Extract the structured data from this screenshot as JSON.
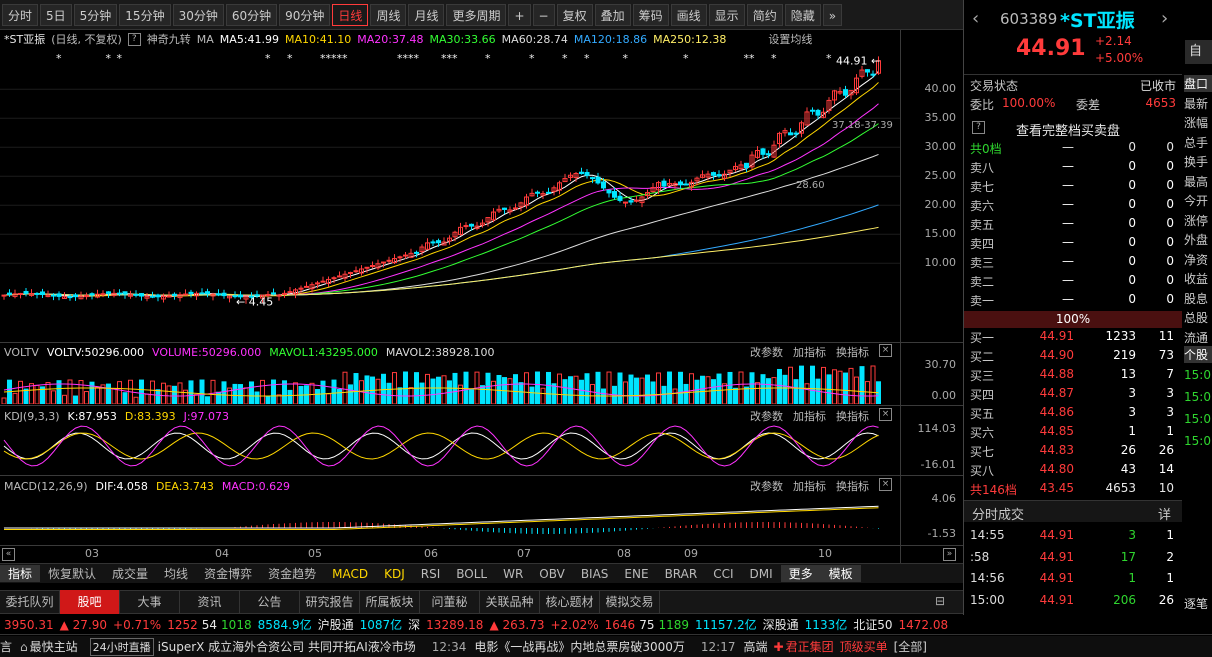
{
  "toolbar": {
    "items": [
      "分时",
      "5日",
      "5分钟",
      "15分钟",
      "30分钟",
      "60分钟",
      "90分钟",
      "日线",
      "周线",
      "月线",
      "更多周期",
      "+",
      "−",
      "复权",
      "叠加",
      "筹码",
      "画线",
      "显示",
      "简约",
      "隐藏"
    ],
    "active": "日线"
  },
  "chart": {
    "stock_name": "*ST亚振",
    "mode": "(日线, 不复权)",
    "indicator": "神奇九转",
    "ma_label": "MA",
    "ma5": "MA5:41.99",
    "ma10": "MA10:41.10",
    "ma20": "MA20:37.48",
    "ma30": "MA30:33.66",
    "ma60": "MA60:28.74",
    "ma120": "MA120:18.86",
    "ma250": "MA250:12.38",
    "settings": "设置均线",
    "high_label": "44.91",
    "low_label": "4.45",
    "range_label_1": "37.18-37.39",
    "range_label_2": "28.60",
    "price_axis": [
      "40.00",
      "35.00",
      "30.00",
      "25.00",
      "20.00",
      "15.00",
      "10.00"
    ],
    "months": [
      "03",
      "04",
      "05",
      "06",
      "07",
      "08",
      "09",
      "10"
    ],
    "colors": {
      "ma5": "#ffffff",
      "ma10": "#ffd700",
      "ma20": "#ff33ff",
      "ma30": "#33ff33",
      "ma60": "#dddddd",
      "ma120": "#33aaff",
      "ma250": "#ffee66",
      "up": "#ff3b3b",
      "down": "#00e5ff"
    }
  },
  "vol": {
    "name": "VOLTV",
    "v1": "VOLTV:50296.000",
    "v2": "VOLUME:50296.000",
    "v3": "MAVOL1:43295.000",
    "v4": "MAVOL2:38928.100",
    "axis_top": "30.70",
    "axis_bot": "0.00"
  },
  "kdj": {
    "name": "KDJ(9,3,3)",
    "k": "K:87.953",
    "d": "D:83.393",
    "j": "J:97.073",
    "axis_top": "114.03",
    "axis_bot": "-16.01"
  },
  "macd": {
    "name": "MACD(12,26,9)",
    "dif": "DIF:4.058",
    "dea": "DEA:3.743",
    "macd": "MACD:0.629",
    "axis_top": "4.06",
    "axis_bot": "-1.53"
  },
  "sub_actions": [
    "改参数",
    "加指标",
    "换指标"
  ],
  "ind_tabs": [
    "指标",
    "恢复默认",
    "成交量",
    "均线",
    "资金博弈",
    "资金趋势",
    "MACD",
    "KDJ",
    "RSI",
    "BOLL",
    "WR",
    "OBV",
    "BIAS",
    "ENE",
    "BRAR",
    "CCI",
    "DMI",
    "更多",
    "模板"
  ],
  "news_tabs": [
    "委托队列",
    "股吧",
    "大事",
    "资讯",
    "公告",
    "研究报告",
    "所属板块",
    "问董秘",
    "关联品种",
    "核心题材",
    "模拟交易"
  ],
  "quote": {
    "code": "603389",
    "name": "*ST亚振",
    "price": "44.91",
    "change": "+2.14",
    "pct": "+5.00%",
    "side_btn": "自选",
    "status_label": "交易状态",
    "status": "已收市",
    "wb_label": "委比",
    "wb": "100.00%",
    "wc_label": "委差",
    "wc": "4653",
    "full_book": "查看完整档买卖盘",
    "sell_total": "共0档",
    "sell_total_v1": "—",
    "sell_total_v2": "0",
    "sell_total_v3": "0",
    "pct_bar": "100%",
    "buy_total": "共146档",
    "buy_total_price": "43.45",
    "buy_total_vol": "4653",
    "buy_total_n": "10",
    "trades_title": "分时成交",
    "trades_btn": "详"
  },
  "sells": [
    {
      "label": "卖八",
      "price": "—",
      "vol": "0",
      "n": "0"
    },
    {
      "label": "卖七",
      "price": "—",
      "vol": "0",
      "n": "0"
    },
    {
      "label": "卖六",
      "price": "—",
      "vol": "0",
      "n": "0"
    },
    {
      "label": "卖五",
      "price": "—",
      "vol": "0",
      "n": "0"
    },
    {
      "label": "卖四",
      "price": "—",
      "vol": "0",
      "n": "0"
    },
    {
      "label": "卖三",
      "price": "—",
      "vol": "0",
      "n": "0"
    },
    {
      "label": "卖二",
      "price": "—",
      "vol": "0",
      "n": "0"
    },
    {
      "label": "卖一",
      "price": "—",
      "vol": "0",
      "n": "0"
    }
  ],
  "buys": [
    {
      "label": "买一",
      "price": "44.91",
      "vol": "1233",
      "n": "11"
    },
    {
      "label": "买二",
      "price": "44.90",
      "vol": "219",
      "n": "73"
    },
    {
      "label": "买三",
      "price": "44.88",
      "vol": "13",
      "n": "7"
    },
    {
      "label": "买四",
      "price": "44.87",
      "vol": "3",
      "n": "3"
    },
    {
      "label": "买五",
      "price": "44.86",
      "vol": "3",
      "n": "3"
    },
    {
      "label": "买六",
      "price": "44.85",
      "vol": "1",
      "n": "1"
    },
    {
      "label": "买七",
      "price": "44.83",
      "vol": "26",
      "n": "26"
    },
    {
      "label": "买八",
      "price": "44.80",
      "vol": "43",
      "n": "14"
    }
  ],
  "trades": [
    {
      "time": "14:55",
      "price": "44.91",
      "vol": "3",
      "n": "1"
    },
    {
      "time": ":58",
      "price": "44.91",
      "vol": "17",
      "n": "2"
    },
    {
      "time": "14:56",
      "price": "44.91",
      "vol": "1",
      "n": "1"
    },
    {
      "time": "15:00",
      "price": "44.91",
      "vol": "206",
      "n": "26"
    }
  ],
  "side_col": [
    "盘口",
    "最新",
    "涨幅",
    "总手",
    "换手",
    "最高",
    "今开",
    "涨停",
    "外盘",
    "净资",
    "收益",
    "股息",
    "总股",
    "流通"
  ],
  "side_col2": [
    "个股",
    "15:0",
    "15:0",
    "15:0",
    "15:0"
  ],
  "side_bottom": "逐笔",
  "index_bar": {
    "sh": "3950.31",
    "sh_chg": "▲ 27.90",
    "sh_pct": "+0.71%",
    "sh_up": "1252",
    "sh_flat": "54",
    "sh_down": "1018",
    "sh_amt": "8584.9亿",
    "hgt": "沪股通",
    "hgt_amt": "1087亿",
    "sz_label": "深",
    "sz": "13289.18",
    "sz_chg": "▲ 263.73",
    "sz_pct": "+2.02%",
    "sz_up": "1646",
    "sz_flat": "75",
    "sz_down": "1189",
    "sz_amt": "11157.2亿",
    "sgt": "深股通",
    "sgt_amt": "1133亿",
    "bz": "北证50",
    "bz_val": "1472.08"
  },
  "news_bar": {
    "left": "言",
    "home": "最快主站",
    "live": "24小时直播",
    "ticker": "iSuperX 成立海外合资公司 共同开拓AI液冷市场",
    "t1": "12:34",
    "n1": "电影《一战再战》内地总票房破3000万",
    "t2": "12:17",
    "n2": "高端",
    "broker": "君正集团",
    "sale": "顶级买单",
    "all": "[全部]"
  }
}
